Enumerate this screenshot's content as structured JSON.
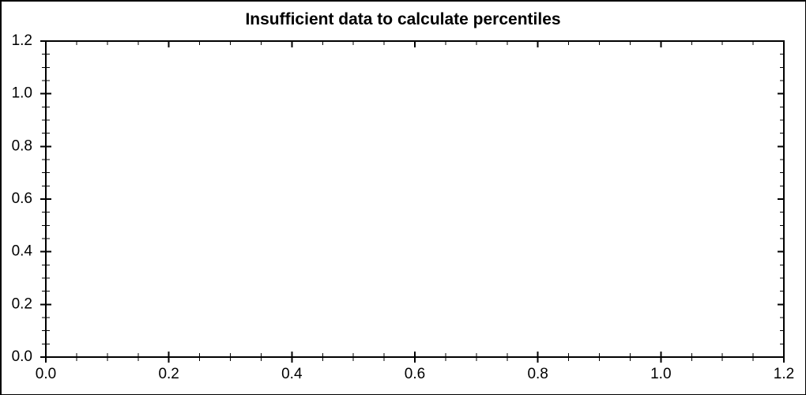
{
  "chart_data": {
    "type": "scatter",
    "title": "Insufficient data to calculate percentiles",
    "xlabel": "",
    "ylabel": "",
    "series": [],
    "xlim": [
      0,
      1.2
    ],
    "ylim": [
      0,
      1.2
    ],
    "x_tick_values": [
      0.0,
      0.2,
      0.4,
      0.6,
      0.8,
      1.0,
      1.2
    ],
    "x_tick_labels": [
      "0.0",
      "0.2",
      "0.4",
      "0.6",
      "0.8",
      "1.0",
      "1.2"
    ],
    "y_tick_values": [
      0.0,
      0.2,
      0.4,
      0.6,
      0.8,
      1.0,
      1.2
    ],
    "y_tick_labels": [
      "0.0",
      "0.2",
      "0.4",
      "0.6",
      "0.8",
      "1.0",
      "1.2"
    ],
    "minor_tick_step": 0.05,
    "grid": false,
    "legend": false,
    "frame": "full-box",
    "axis_color": "#000000",
    "background_color": "#ffffff"
  }
}
